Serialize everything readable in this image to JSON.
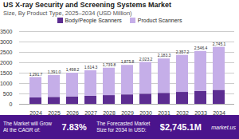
{
  "chart_data": {
    "type": "bar",
    "stacked": true,
    "title": "US X-ray Security and Screening Systems Market",
    "subtitle": "Size, By Product Type, 2025–2034 (USD Million)",
    "categories": [
      "2024",
      "2025",
      "2026",
      "2027",
      "2028",
      "2029",
      "2030",
      "2031",
      "2032",
      "2033",
      "2034"
    ],
    "series": [
      {
        "name": "Body/People Scanners",
        "color": "#5c2d91",
        "values": [
          310,
          335,
          360,
          390,
          420,
          455,
          490,
          530,
          575,
          625,
          675
        ]
      },
      {
        "name": "Product Scanners",
        "color": "#c5aee8",
        "values": [
          981.7,
          1056.0,
          1138.2,
          1224.3,
          1319.8,
          1420.8,
          1533.2,
          1653.3,
          1782.2,
          1921.4,
          2070.1
        ]
      }
    ],
    "totals": [
      1291.7,
      1391.0,
      1498.2,
      1614.3,
      1739.8,
      1875.8,
      2023.2,
      2183.3,
      2357.2,
      2546.4,
      2745.1
    ],
    "total_labels": [
      "1,291.7",
      "1,391.0",
      "1,498.2",
      "1,614.3",
      "1,739.8",
      "1,875.8",
      "2,023.2",
      "2,183.3",
      "2,357.2",
      "2,546.4",
      "2,745.1"
    ],
    "ylim": [
      0,
      3500
    ],
    "yticks": [
      0,
      500,
      1000,
      1500,
      2000,
      2500,
      3000,
      3500
    ],
    "grid": true,
    "legend": "top",
    "annotations": [
      "The Market will Grow",
      "At the CAGR of:",
      "7.83%",
      "The Forecasted Market",
      "Size for 2034 in USD:",
      "$2,745.1M",
      "market.us"
    ]
  }
}
